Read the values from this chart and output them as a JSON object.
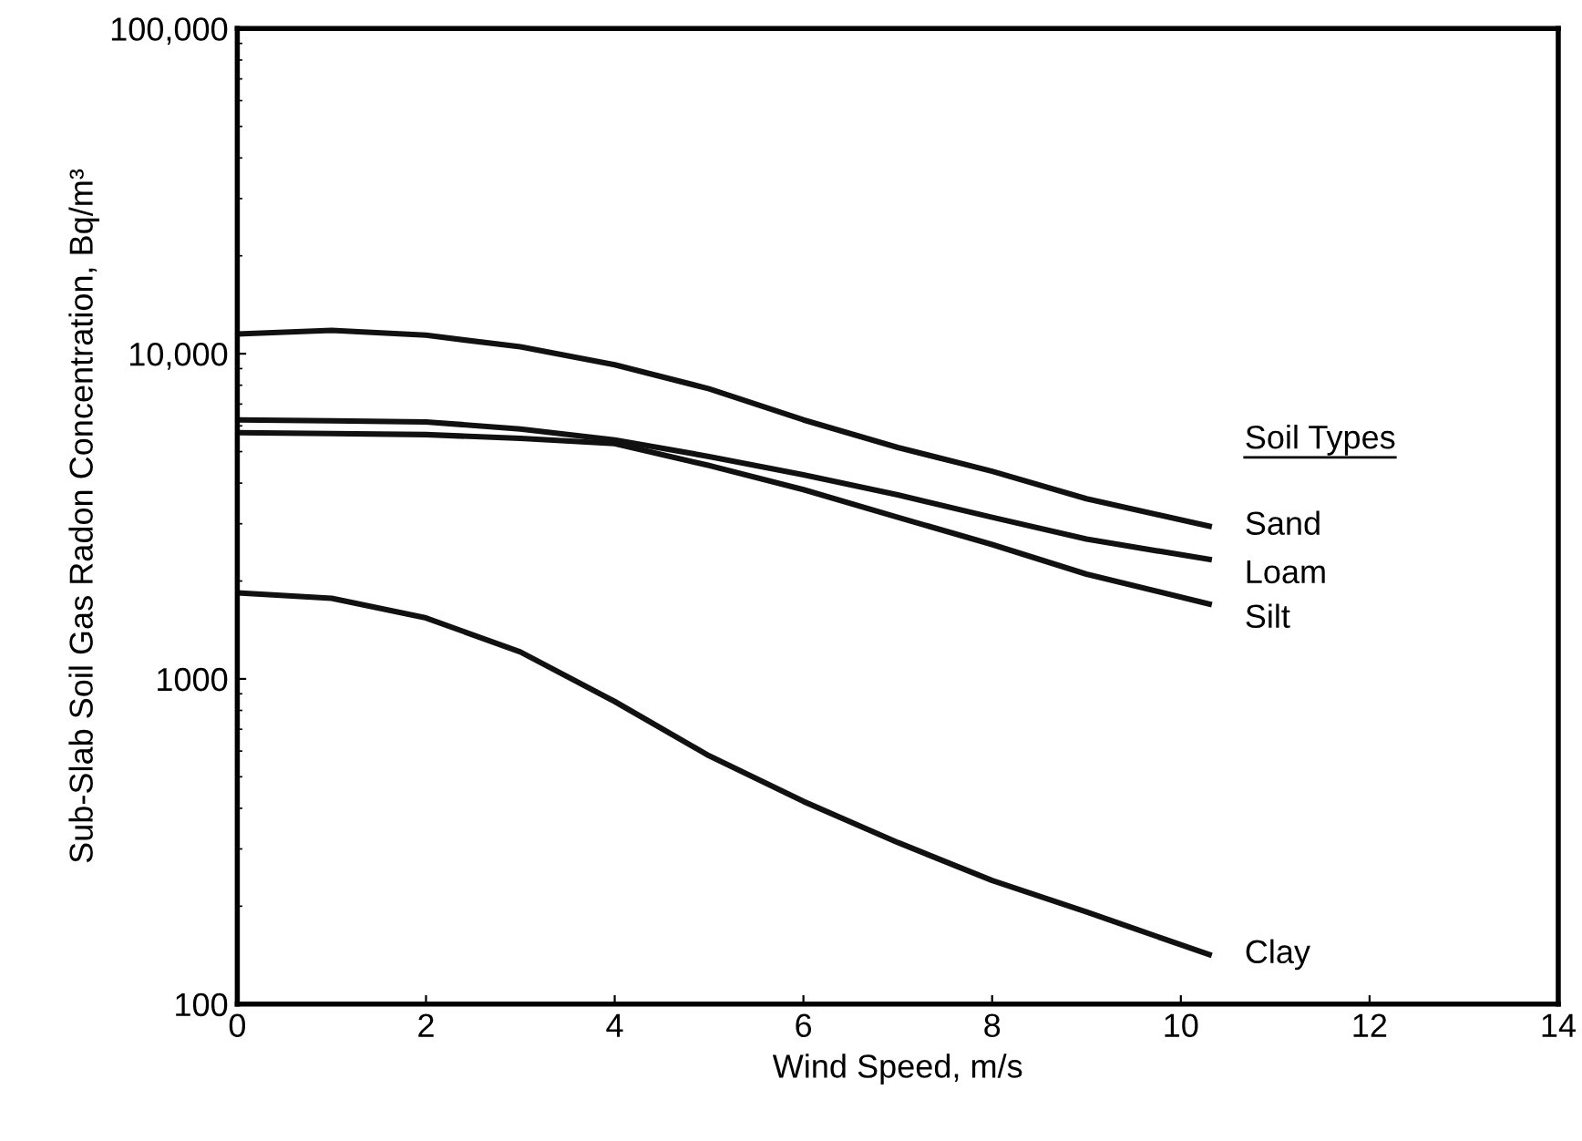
{
  "chart_data": {
    "type": "line",
    "xlabel": "Wind Speed, m/s",
    "ylabel": "Sub-Slab Soil Gas Radon Concentration, Bq/m³",
    "legend_title": "Soil Types",
    "x": [
      0,
      1,
      2,
      3,
      4,
      5,
      6,
      7,
      8,
      9,
      10.3
    ],
    "series": [
      {
        "name": "Sand",
        "color": "#111111",
        "values": [
          11500,
          11800,
          11400,
          10500,
          9250,
          7800,
          6260,
          5150,
          4350,
          3580,
          2950
        ]
      },
      {
        "name": "Loam",
        "color": "#111111",
        "values": [
          6260,
          6220,
          6170,
          5870,
          5430,
          4830,
          4240,
          3680,
          3140,
          2690,
          2330
        ]
      },
      {
        "name": "Silt",
        "color": "#111111",
        "values": [
          5720,
          5680,
          5640,
          5490,
          5290,
          4530,
          3820,
          3140,
          2590,
          2100,
          1700
        ]
      },
      {
        "name": "Clay",
        "color": "#111111",
        "values": [
          1840,
          1770,
          1540,
          1210,
          852,
          580,
          420,
          314,
          240,
          192,
          142
        ]
      }
    ],
    "log": "y",
    "xlim": [
      0,
      14
    ],
    "xticks": [
      0,
      2,
      4,
      6,
      8,
      10,
      12,
      14
    ],
    "ylim": [
      100,
      100000
    ],
    "yticks": [
      100,
      1000,
      {
        "value": 10000,
        "label": "10,000"
      },
      {
        "value": 100000,
        "label": "100,000"
      }
    ],
    "grid": false,
    "legend": false,
    "marker": "none",
    "line_style": "solid"
  }
}
